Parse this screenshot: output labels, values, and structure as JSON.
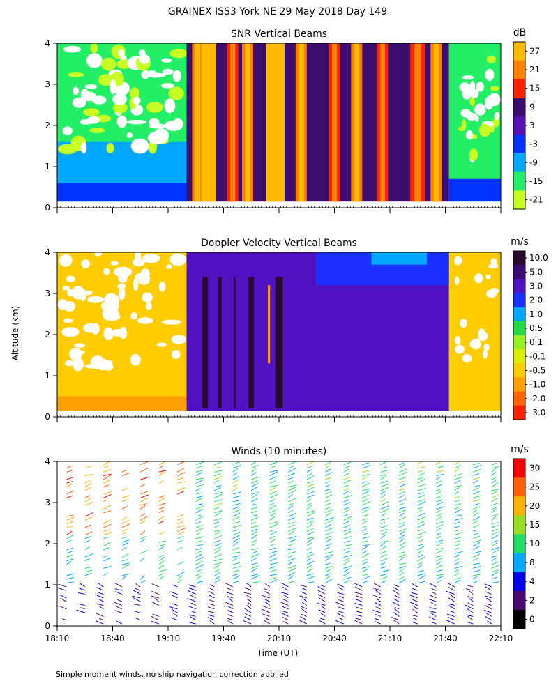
{
  "page": {
    "title": "GRAINEX ISS3 York NE  29 May 2018 Day 149",
    "ylabel": "Altitude (km)",
    "xlabel": "Time (UT)",
    "footnote": "Simple moment winds, no ship navigation correction applied"
  },
  "chart_data": [
    {
      "type": "heatmap",
      "title": "SNR Vertical Beams",
      "colorbar_unit": "dB",
      "colorbar_labels": [
        "27",
        "21",
        "15",
        "9",
        "3",
        "-3",
        "-9",
        "-15",
        "-21"
      ],
      "colors": [
        "#ffbb00",
        "#ff8000",
        "#ff2000",
        "#3a0d6e",
        "#5512b0",
        "#0033ff",
        "#00a8ff",
        "#22ee66",
        "#c8ff22"
      ],
      "x_ticks": [
        "18:10",
        "18:40",
        "19:10",
        "19:40",
        "20:10",
        "20:40",
        "21:10",
        "21:40",
        "22:10"
      ],
      "y_ticks": [
        "0",
        "1",
        "2",
        "3",
        "4"
      ],
      "xlim": [
        "18:10",
        "22:10"
      ],
      "ylim": [
        0,
        4
      ]
    },
    {
      "type": "heatmap",
      "title": "Doppler Velocity Vertical Beams",
      "colorbar_unit": "m/s",
      "colorbar_labels": [
        "10.0",
        "5.0",
        "3.0",
        "2.0",
        "1.0",
        "0.5",
        "0.1",
        "-0.1",
        "-0.5",
        "-1.0",
        "-2.0",
        "-3.0"
      ],
      "colors": [
        "#2a0a2e",
        "#3c0b78",
        "#5012c0",
        "#1a30ff",
        "#00a8ff",
        "#22dd44",
        "#99ee22",
        "#ddee00",
        "#ffcc00",
        "#ffa000",
        "#ff6600",
        "#ff2000"
      ],
      "x_ticks": [
        "18:10",
        "18:40",
        "19:10",
        "19:40",
        "20:10",
        "20:40",
        "21:10",
        "21:40",
        "22:10"
      ],
      "y_ticks": [
        "0",
        "1",
        "2",
        "3",
        "4"
      ],
      "xlim": [
        "18:10",
        "22:10"
      ],
      "ylim": [
        0,
        4
      ]
    },
    {
      "type": "scatter",
      "title": "Winds (10 minutes)",
      "colorbar_unit": "m/s",
      "colorbar_labels": [
        "30",
        "25",
        "20",
        "15",
        "10",
        "8",
        "4",
        "2",
        "0"
      ],
      "colors": [
        "#ff0000",
        "#ff6000",
        "#ffb000",
        "#99dd22",
        "#22dd66",
        "#00aaff",
        "#0000ee",
        "#4a0a70",
        "#000000"
      ],
      "x_ticks": [
        "18:10",
        "18:40",
        "19:10",
        "19:40",
        "20:10",
        "20:40",
        "21:10",
        "21:40",
        "22:10"
      ],
      "y_ticks": [
        "0",
        "1",
        "2",
        "3",
        "4"
      ],
      "xlim": [
        "18:10",
        "22:10"
      ],
      "ylim": [
        0,
        4
      ]
    }
  ]
}
